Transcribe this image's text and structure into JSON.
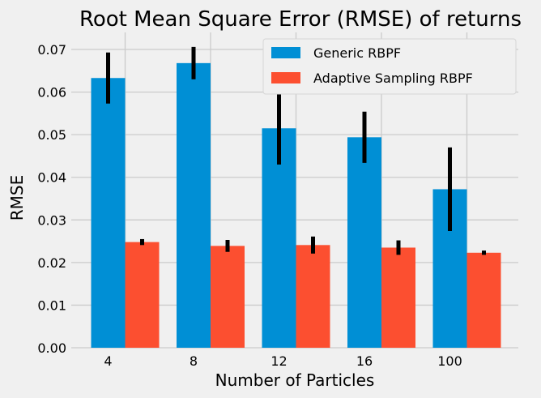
{
  "chart_data": {
    "type": "bar",
    "title": "Root Mean Square Error (RMSE) of returns",
    "xlabel": "Number of Particles",
    "ylabel": "RMSE",
    "categories": [
      "4",
      "8",
      "12",
      "16",
      "100"
    ],
    "series": [
      {
        "name": "Generic RBPF",
        "color": "#008fd5",
        "values": [
          0.0633,
          0.0668,
          0.0515,
          0.0494,
          0.0372
        ],
        "errors": [
          0.006,
          0.0038,
          0.0085,
          0.006,
          0.0098
        ]
      },
      {
        "name": "Adaptive Sampling RBPF",
        "color": "#fc4f30",
        "values": [
          0.0248,
          0.0239,
          0.0241,
          0.0235,
          0.0223
        ],
        "errors": [
          0.0007,
          0.0014,
          0.002,
          0.0017,
          0.0005
        ]
      }
    ],
    "ylim": [
      0,
      0.074
    ],
    "yticks": [
      "0.00",
      "0.01",
      "0.02",
      "0.03",
      "0.04",
      "0.05",
      "0.06",
      "0.07"
    ],
    "grid": true,
    "legend_position": "top-right",
    "background": "#f0f0f0",
    "grid_color": "#cbcbcb"
  }
}
